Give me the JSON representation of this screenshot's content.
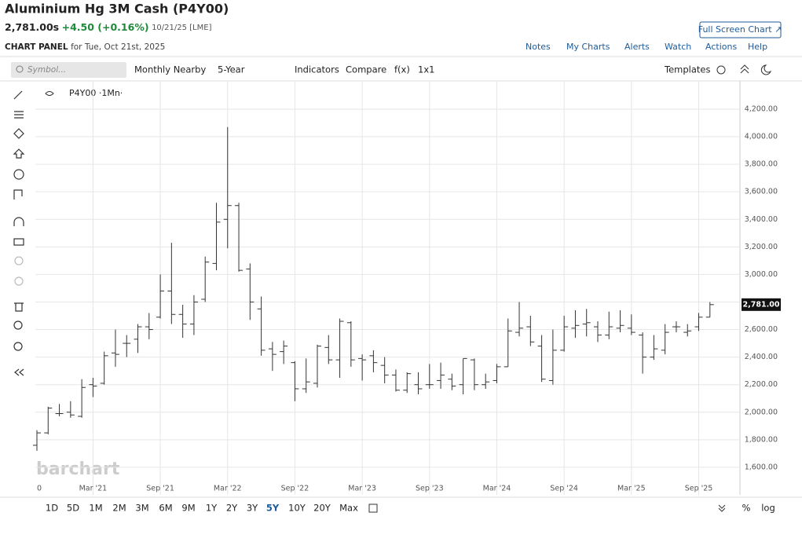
{
  "header": {
    "title": "Aluminium Hg 3M Cash (P4Y00)",
    "price": "2,781.00s",
    "change": "+4.50 (+0.16%)",
    "date": "10/21/25 [LME]",
    "panel": "CHART PANEL",
    "panel_date": "for Tue, Oct 21st, 2025",
    "full_screen": "Full Screen Chart ↗",
    "links": [
      "Notes",
      "My Charts",
      "Alerts",
      "Watch",
      "Actions",
      "Help"
    ]
  },
  "toolbar": {
    "symbol_placeholder": "Symbol...",
    "items": [
      "Monthly Nearby",
      "5-Year",
      "Indicators",
      "Compare",
      "f(x)",
      "1x1"
    ],
    "templates": "Templates"
  },
  "legend": "P4Y00 ·1Mn·",
  "watermark": "barchart",
  "ranges": [
    "1D",
    "5D",
    "1M",
    "2M",
    "3M",
    "6M",
    "9M",
    "1Y",
    "2Y",
    "3Y",
    "5Y",
    "10Y",
    "20Y",
    "Max"
  ],
  "active_range": "5Y",
  "bottom_right": [
    "%",
    "log"
  ],
  "chart_data": {
    "type": "ohlc",
    "color": "#333333",
    "categories": [
      "0",
      null,
      null,
      null,
      null,
      "Mar '21",
      null,
      null,
      null,
      null,
      null,
      "Sep '21",
      null,
      null,
      null,
      null,
      null,
      "Mar '22",
      null,
      null,
      null,
      null,
      null,
      "Sep '22",
      null,
      null,
      null,
      null,
      null,
      "Mar '23",
      null,
      null,
      null,
      null,
      null,
      "Sep '23",
      null,
      null,
      null,
      null,
      null,
      "Mar '24",
      null,
      null,
      null,
      null,
      null,
      "Sep '24",
      null,
      null,
      null,
      null,
      null,
      "Mar '25",
      null,
      null,
      null,
      null,
      null,
      "Sep '25",
      null
    ],
    "open": [
      1760,
      1850,
      1990,
      2000,
      1970,
      2200,
      2210,
      2430,
      2500,
      2530,
      2620,
      2690,
      2880,
      2710,
      2640,
      2820,
      3080,
      3400,
      3500,
      3040,
      2750,
      2460,
      2440,
      2360,
      2170,
      2210,
      2470,
      2380,
      2650,
      2390,
      2410,
      2340,
      2270,
      2160,
      2200,
      2200,
      2230,
      2240,
      2200,
      2380,
      2200,
      2230,
      2330,
      2580,
      2620,
      2480,
      2230,
      2450,
      2610,
      2640,
      2620,
      2560,
      2610,
      2610,
      2560,
      2400,
      2450,
      2620,
      2580,
      2620,
      2690
    ],
    "high": [
      1870,
      2040,
      2060,
      2080,
      2240,
      2250,
      2440,
      2600,
      2560,
      2640,
      2720,
      3000,
      3230,
      2780,
      2850,
      3130,
      3520,
      4070,
      3520,
      3080,
      2840,
      2510,
      2520,
      2370,
      2390,
      2490,
      2560,
      2680,
      2660,
      2420,
      2450,
      2400,
      2310,
      2290,
      2290,
      2350,
      2360,
      2280,
      2390,
      2390,
      2280,
      2350,
      2680,
      2800,
      2700,
      2560,
      2600,
      2700,
      2740,
      2750,
      2660,
      2730,
      2740,
      2710,
      2580,
      2560,
      2640,
      2660,
      2640,
      2720,
      2800
    ],
    "low": [
      1720,
      1840,
      1970,
      1960,
      1960,
      2110,
      2200,
      2330,
      2400,
      2430,
      2530,
      2680,
      2640,
      2540,
      2560,
      2800,
      3030,
      3190,
      3020,
      2670,
      2410,
      2300,
      2350,
      2080,
      2140,
      2180,
      2350,
      2250,
      2330,
      2230,
      2290,
      2210,
      2150,
      2140,
      2130,
      2170,
      2170,
      2160,
      2130,
      2160,
      2170,
      2210,
      2330,
      2550,
      2480,
      2220,
      2200,
      2440,
      2540,
      2550,
      2510,
      2530,
      2580,
      2560,
      2280,
      2380,
      2420,
      2580,
      2550,
      2590,
      2690
    ],
    "close": [
      1850,
      2030,
      1990,
      1980,
      2180,
      2190,
      2410,
      2420,
      2500,
      2620,
      2600,
      2880,
      2710,
      2640,
      2800,
      3090,
      3380,
      3500,
      3030,
      2800,
      2450,
      2420,
      2480,
      2170,
      2220,
      2480,
      2380,
      2660,
      2380,
      2380,
      2360,
      2270,
      2160,
      2280,
      2170,
      2200,
      2270,
      2190,
      2390,
      2200,
      2220,
      2330,
      2590,
      2610,
      2510,
      2240,
      2450,
      2620,
      2630,
      2650,
      2560,
      2620,
      2630,
      2580,
      2400,
      2460,
      2580,
      2620,
      2590,
      2690,
      2781
    ],
    "last_price": {
      "value": 2781,
      "label": "2,781.00"
    },
    "ylim": [
      1400,
      4405
    ],
    "yticks": [
      {
        "value": 1600,
        "label": "1,600.00"
      },
      {
        "value": 1800,
        "label": "1,800.00"
      },
      {
        "value": 2000,
        "label": "2,000.00"
      },
      {
        "value": 2200,
        "label": "2,200.00"
      },
      {
        "value": 2400,
        "label": "2,400.00"
      },
      {
        "value": 2600,
        "label": "2,600.00"
      },
      {
        "value": 2800,
        "label": "2,800.00"
      },
      {
        "value": 3000,
        "label": "3,000.00"
      },
      {
        "value": 3200,
        "label": "3,200.00"
      },
      {
        "value": 3400,
        "label": "3,400.00"
      },
      {
        "value": 3600,
        "label": "3,600.00"
      },
      {
        "value": 3800,
        "label": "3,800.00"
      },
      {
        "value": 4000,
        "label": "4,000.00"
      },
      {
        "value": 4200,
        "label": "4,200.00"
      }
    ],
    "grid": true
  }
}
